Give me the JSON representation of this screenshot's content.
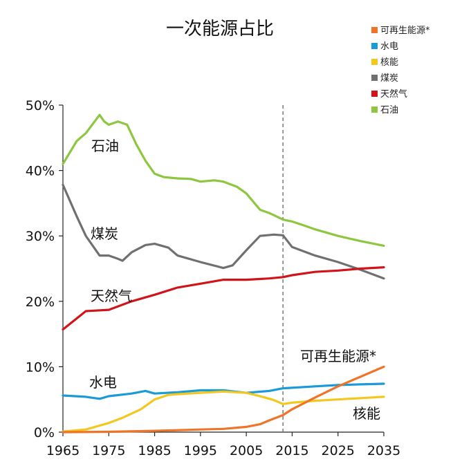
{
  "chart_data": {
    "type": "line",
    "title": "一次能源占比",
    "xlabel": "",
    "ylabel": "",
    "xlim": [
      1965,
      2035
    ],
    "ylim": [
      0,
      50
    ],
    "x_ticks": [
      "1965",
      "1975",
      "1985",
      "1995",
      "2005",
      "2015",
      "2025",
      "2035"
    ],
    "y_ticks": [
      "0%",
      "10%",
      "20%",
      "30%",
      "40%",
      "50%"
    ],
    "forecast_divider_year": 2013,
    "legend_position": "top-right",
    "legend": [
      "可再生能源*",
      "水电",
      "核能",
      "煤炭",
      "天然气",
      "石油"
    ],
    "series": [
      {
        "name": "可再生能源*",
        "color": "#f07427",
        "x": [
          1965,
          1975,
          1985,
          1990,
          1995,
          2000,
          2005,
          2008,
          2010,
          2013,
          2015,
          2020,
          2025,
          2030,
          2035
        ],
        "values": [
          0.0,
          0.05,
          0.2,
          0.3,
          0.4,
          0.5,
          0.8,
          1.2,
          1.8,
          2.6,
          3.5,
          5.3,
          7.0,
          8.5,
          10.0
        ]
      },
      {
        "name": "水电",
        "color": "#1a9ad6",
        "x": [
          1965,
          1970,
          1973,
          1975,
          1980,
          1983,
          1985,
          1990,
          1995,
          2000,
          2005,
          2010,
          2013,
          2020,
          2025,
          2030,
          2035
        ],
        "values": [
          5.6,
          5.4,
          5.1,
          5.5,
          5.9,
          6.3,
          5.9,
          6.1,
          6.4,
          6.4,
          6.0,
          6.3,
          6.7,
          7.0,
          7.2,
          7.3,
          7.4
        ]
      },
      {
        "name": "核能",
        "color": "#f2c81e",
        "x": [
          1965,
          1970,
          1975,
          1978,
          1982,
          1985,
          1988,
          1990,
          1995,
          2000,
          2005,
          2008,
          2011,
          2013,
          2015,
          2020,
          2025,
          2030,
          2035
        ],
        "values": [
          0.1,
          0.4,
          1.4,
          2.2,
          3.5,
          5.0,
          5.7,
          5.8,
          6.0,
          6.2,
          6.0,
          5.5,
          4.9,
          4.3,
          4.5,
          4.8,
          5.0,
          5.2,
          5.4
        ]
      },
      {
        "name": "煤炭",
        "color": "#707070",
        "x": [
          1965,
          1968,
          1970,
          1973,
          1975,
          1977,
          1978,
          1980,
          1983,
          1985,
          1988,
          1990,
          1995,
          2000,
          2002,
          2005,
          2008,
          2011,
          2013,
          2015,
          2020,
          2025,
          2030,
          2035
        ],
        "values": [
          37.8,
          33.0,
          30.0,
          27.0,
          27.0,
          26.5,
          26.2,
          27.5,
          28.6,
          28.8,
          28.2,
          27.0,
          26.0,
          25.1,
          25.5,
          27.8,
          30.0,
          30.2,
          30.1,
          28.3,
          27.0,
          26.0,
          24.8,
          23.5
        ]
      },
      {
        "name": "天然气",
        "color": "#d0141a",
        "x": [
          1965,
          1970,
          1975,
          1980,
          1985,
          1990,
          1995,
          2000,
          2005,
          2010,
          2013,
          2015,
          2020,
          2025,
          2030,
          2035
        ],
        "values": [
          15.7,
          18.5,
          18.7,
          20.0,
          21.0,
          22.1,
          22.7,
          23.3,
          23.3,
          23.5,
          23.7,
          24.0,
          24.5,
          24.7,
          25.0,
          25.2
        ]
      },
      {
        "name": "石油",
        "color": "#8dc63f",
        "x": [
          1965,
          1968,
          1970,
          1973,
          1974,
          1975,
          1977,
          1979,
          1981,
          1983,
          1985,
          1987,
          1990,
          1993,
          1995,
          1998,
          2000,
          2003,
          2005,
          2008,
          2010,
          2013,
          2015,
          2018,
          2020,
          2025,
          2030,
          2035
        ],
        "values": [
          41.0,
          44.5,
          45.7,
          48.5,
          47.5,
          47.0,
          47.5,
          47.0,
          44.0,
          41.5,
          39.5,
          39.0,
          38.8,
          38.7,
          38.3,
          38.5,
          38.3,
          37.5,
          36.5,
          34.0,
          33.5,
          32.5,
          32.2,
          31.5,
          31.0,
          30.0,
          29.2,
          28.5
        ]
      }
    ],
    "annotations": [
      "石油",
      "煤炭",
      "天然气",
      "水电",
      "可再生能源*",
      "核能"
    ]
  }
}
